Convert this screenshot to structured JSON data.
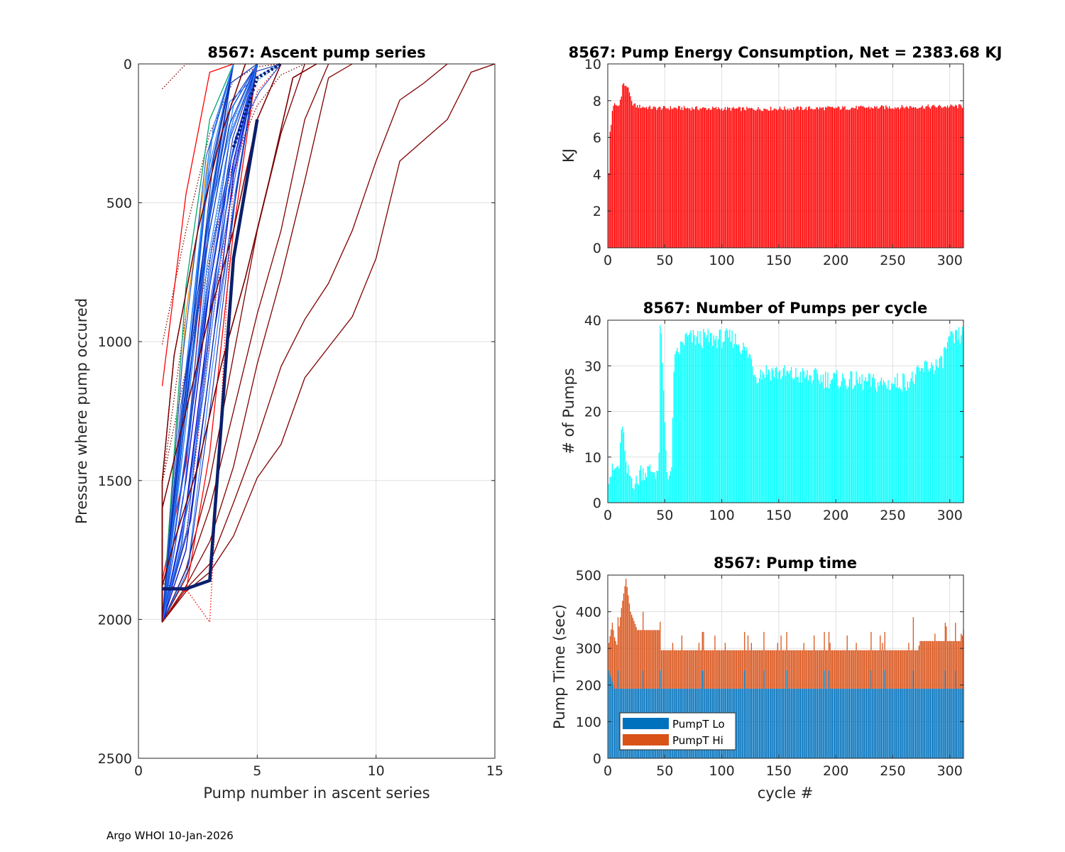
{
  "footer": "Argo WHOI 10-Jan-2026",
  "chart_data": [
    {
      "id": "ascent",
      "type": "line",
      "title": "8567: Ascent pump series",
      "xlabel": "Pump number in ascent series",
      "ylabel": "Pressure where pump occured",
      "xlim": [
        0,
        15
      ],
      "ylim": [
        0,
        2500
      ],
      "y_reversed": true,
      "xticks": [
        "0",
        "5",
        "10",
        "15"
      ],
      "yticks": [
        "0",
        "500",
        "1000",
        "1500",
        "2000",
        "2500"
      ],
      "grid": true,
      "series_colors": {
        "early": "#800000",
        "red": "#ff0000",
        "mid": "#1e90ff",
        "late": "#0000cd",
        "last": "#0b1f6b",
        "green": "#00a86b",
        "orange": "#e69500"
      },
      "series": [
        {
          "name": "darkred-long-1",
          "color": "early",
          "style": "solid",
          "x": [
            1,
            2,
            3,
            4,
            5,
            6,
            7,
            8,
            9,
            10,
            11,
            13,
            14,
            15
          ],
          "y": [
            2010,
            1900,
            1830,
            1700,
            1490,
            1370,
            1130,
            1020,
            910,
            700,
            350,
            200,
            30,
            0
          ]
        },
        {
          "name": "darkred-long-2",
          "color": "early",
          "style": "solid",
          "x": [
            1,
            2,
            3,
            4,
            5,
            6,
            7,
            8,
            9,
            10,
            11,
            12,
            13
          ],
          "y": [
            2010,
            1890,
            1800,
            1580,
            1350,
            1090,
            920,
            790,
            600,
            350,
            130,
            70,
            0
          ]
        },
        {
          "name": "darkred-mid-1",
          "color": "early",
          "style": "solid",
          "x": [
            1,
            2,
            3,
            4,
            5,
            6,
            7,
            8,
            9
          ],
          "y": [
            2010,
            1880,
            1720,
            1450,
            1080,
            770,
            420,
            50,
            0
          ]
        },
        {
          "name": "darkred-mid-2",
          "color": "early",
          "style": "solid",
          "x": [
            1,
            2,
            3,
            4,
            5,
            6,
            7,
            8
          ],
          "y": [
            2010,
            1850,
            1600,
            1250,
            900,
            600,
            200,
            0
          ]
        },
        {
          "name": "darkred-mid-3",
          "color": "early",
          "style": "solid",
          "x": [
            1,
            2,
            3,
            4,
            5,
            6,
            7
          ],
          "y": [
            2010,
            1820,
            1500,
            1050,
            600,
            250,
            0
          ]
        },
        {
          "name": "darkred-dot-1",
          "color": "early",
          "style": "dotted",
          "x": [
            1,
            2,
            3,
            4,
            5,
            6,
            7
          ],
          "y": [
            1510,
            1100,
            700,
            350,
            150,
            40,
            0
          ]
        },
        {
          "name": "darkred-dot-2",
          "color": "early",
          "style": "dotted",
          "x": [
            1,
            2,
            3,
            4,
            5,
            6
          ],
          "y": [
            1010,
            600,
            250,
            60,
            10,
            0
          ]
        },
        {
          "name": "darkred-dot-3",
          "color": "early",
          "style": "dotted",
          "x": [
            1,
            2,
            3,
            4,
            5
          ],
          "y": [
            90,
            0,
            0,
            0,
            0
          ]
        },
        {
          "name": "darkred-dot-4",
          "color": "early",
          "style": "dotted",
          "x": [
            1,
            2,
            3,
            4
          ],
          "y": [
            1510,
            900,
            300,
            0
          ]
        },
        {
          "name": "red-1",
          "color": "red",
          "style": "solid",
          "x": [
            1,
            2,
            3,
            4
          ],
          "y": [
            1160,
            470,
            30,
            0
          ]
        },
        {
          "name": "red-2",
          "color": "red",
          "style": "solid",
          "x": [
            1,
            2,
            3,
            4
          ],
          "y": [
            1860,
            1440,
            500,
            0
          ]
        },
        {
          "name": "red-3",
          "color": "red",
          "style": "solid",
          "x": [
            1,
            2,
            3,
            4,
            5
          ],
          "y": [
            1870,
            1900,
            1400,
            600,
            0
          ]
        },
        {
          "name": "red-dot-1",
          "color": "red",
          "style": "dotted",
          "x": [
            1,
            2,
            3,
            4,
            5
          ],
          "y": [
            2010,
            1890,
            2010,
            400,
            0
          ]
        },
        {
          "name": "red-dot-2",
          "color": "red",
          "style": "dotted",
          "x": [
            1,
            2,
            3,
            4,
            5,
            6
          ],
          "y": [
            2010,
            1700,
            1000,
            400,
            100,
            0
          ]
        },
        {
          "name": "green-1",
          "color": "green",
          "style": "solid",
          "x": [
            1,
            2,
            3,
            4
          ],
          "y": [
            2010,
            800,
            200,
            0
          ]
        },
        {
          "name": "orange-1",
          "color": "orange",
          "style": "solid",
          "x": [
            1,
            2,
            3,
            4
          ],
          "y": [
            2010,
            900,
            300,
            0
          ]
        },
        {
          "name": "blue-1",
          "color": "mid",
          "style": "solid",
          "x": [
            1,
            2,
            3,
            4
          ],
          "y": [
            2010,
            1300,
            500,
            0
          ]
        },
        {
          "name": "blue-2",
          "color": "mid",
          "style": "solid",
          "x": [
            1,
            2,
            3,
            4
          ],
          "y": [
            2010,
            1100,
            300,
            0
          ]
        },
        {
          "name": "blue-3",
          "color": "mid",
          "style": "solid",
          "x": [
            1,
            2,
            3,
            4,
            5
          ],
          "y": [
            2010,
            1200,
            600,
            150,
            0
          ]
        },
        {
          "name": "blue-4",
          "color": "late",
          "style": "solid",
          "x": [
            1,
            2,
            3,
            4,
            5
          ],
          "y": [
            2010,
            1500,
            800,
            300,
            0
          ]
        },
        {
          "name": "blue-5",
          "color": "late",
          "style": "solid",
          "x": [
            1,
            2,
            3,
            4,
            5
          ],
          "y": [
            2010,
            1750,
            1100,
            400,
            0
          ]
        },
        {
          "name": "blue-6",
          "color": "late",
          "style": "solid",
          "x": [
            1,
            2,
            3,
            4,
            5
          ],
          "y": [
            2010,
            1600,
            900,
            350,
            0
          ]
        },
        {
          "name": "blue-dot-1",
          "color": "mid",
          "style": "dotted",
          "x": [
            1,
            2,
            3,
            4,
            5,
            6
          ],
          "y": [
            2010,
            1400,
            700,
            200,
            60,
            0
          ]
        },
        {
          "name": "navy-thick",
          "color": "last",
          "style": "solid",
          "thick": true,
          "x": [
            1,
            2,
            3,
            4,
            5
          ],
          "y": [
            1890,
            1890,
            1860,
            700,
            200
          ]
        },
        {
          "name": "navy-dot",
          "color": "last",
          "style": "dotted",
          "thick": true,
          "x": [
            4,
            5,
            6
          ],
          "y": [
            300,
            50,
            0
          ]
        }
      ]
    },
    {
      "id": "energy",
      "type": "bar",
      "title": "8567: Pump Energy Consumption,  Net = 2383.68 KJ",
      "xlabel": "",
      "ylabel": "KJ",
      "xlim": [
        0,
        312
      ],
      "ylim": [
        0,
        10
      ],
      "xticks": [
        "0",
        "50",
        "100",
        "150",
        "200",
        "250",
        "300"
      ],
      "yticks": [
        "0",
        "2",
        "4",
        "6",
        "8",
        "10"
      ],
      "grid": true,
      "color": "#ff0000",
      "cycles": 312,
      "profile": [
        [
          1,
          4.0
        ],
        [
          2,
          6.3
        ],
        [
          3,
          6.7
        ],
        [
          4,
          7.5
        ],
        [
          6,
          7.8
        ],
        [
          9,
          7.7
        ],
        [
          12,
          8.2
        ],
        [
          13,
          8.9
        ],
        [
          17,
          8.8
        ],
        [
          19,
          8.4
        ],
        [
          21,
          7.9
        ],
        [
          25,
          7.7
        ],
        [
          40,
          7.6
        ],
        [
          60,
          7.6
        ],
        [
          120,
          7.55
        ],
        [
          200,
          7.6
        ],
        [
          312,
          7.7
        ]
      ]
    },
    {
      "id": "pumps",
      "type": "bar",
      "title": "8567: Number of Pumps per cycle",
      "xlabel": "",
      "ylabel": "# of Pumps",
      "xlim": [
        0,
        312
      ],
      "ylim": [
        0,
        40
      ],
      "xticks": [
        "0",
        "50",
        "100",
        "150",
        "200",
        "250",
        "300"
      ],
      "yticks": [
        "0",
        "10",
        "20",
        "30",
        "40"
      ],
      "grid": true,
      "color": "#00ffff",
      "cycles": 312,
      "profile": [
        [
          1,
          6
        ],
        [
          10,
          8
        ],
        [
          13,
          18
        ],
        [
          16,
          7
        ],
        [
          22,
          5
        ],
        [
          26,
          4
        ],
        [
          28,
          7
        ],
        [
          44,
          7
        ],
        [
          45,
          9
        ],
        [
          46,
          40
        ],
        [
          48,
          30
        ],
        [
          50,
          17
        ],
        [
          52,
          7
        ],
        [
          56,
          6
        ],
        [
          58,
          30
        ],
        [
          62,
          33
        ],
        [
          68,
          36
        ],
        [
          110,
          36
        ],
        [
          115,
          35
        ],
        [
          125,
          32
        ],
        [
          130,
          28
        ],
        [
          140,
          29
        ],
        [
          160,
          28
        ],
        [
          200,
          27
        ],
        [
          245,
          26
        ],
        [
          268,
          27
        ],
        [
          280,
          30
        ],
        [
          292,
          30
        ],
        [
          298,
          35
        ],
        [
          312,
          37
        ]
      ]
    },
    {
      "id": "pumptime",
      "type": "bar",
      "title": "8567: Pump time",
      "xlabel": "cycle #",
      "ylabel": "Pump Time (sec)",
      "xlim": [
        0,
        312
      ],
      "ylim": [
        0,
        500
      ],
      "xticks": [
        "0",
        "50",
        "100",
        "150",
        "200",
        "250",
        "300"
      ],
      "yticks": [
        "0",
        "100",
        "200",
        "300",
        "400",
        "500"
      ],
      "grid": true,
      "stacked": true,
      "cycles": 312,
      "legend_position": "bottom-left",
      "series": [
        {
          "name": "PumpT Lo",
          "color": "#0072bd",
          "profile": [
            [
              1,
              240
            ],
            [
              6,
              190
            ],
            [
              312,
              190
            ]
          ]
        },
        {
          "name": "PumpT Hi",
          "color": "#d95319",
          "profile": [
            [
              1,
              75
            ],
            [
              4,
              160
            ],
            [
              8,
              120
            ],
            [
              12,
              220
            ],
            [
              16,
              300
            ],
            [
              20,
              210
            ],
            [
              26,
              160
            ],
            [
              45,
              160
            ],
            [
              47,
              105
            ],
            [
              272,
              105
            ],
            [
              274,
              130
            ],
            [
              310,
              130
            ],
            [
              312,
              160
            ]
          ]
        }
      ]
    }
  ]
}
